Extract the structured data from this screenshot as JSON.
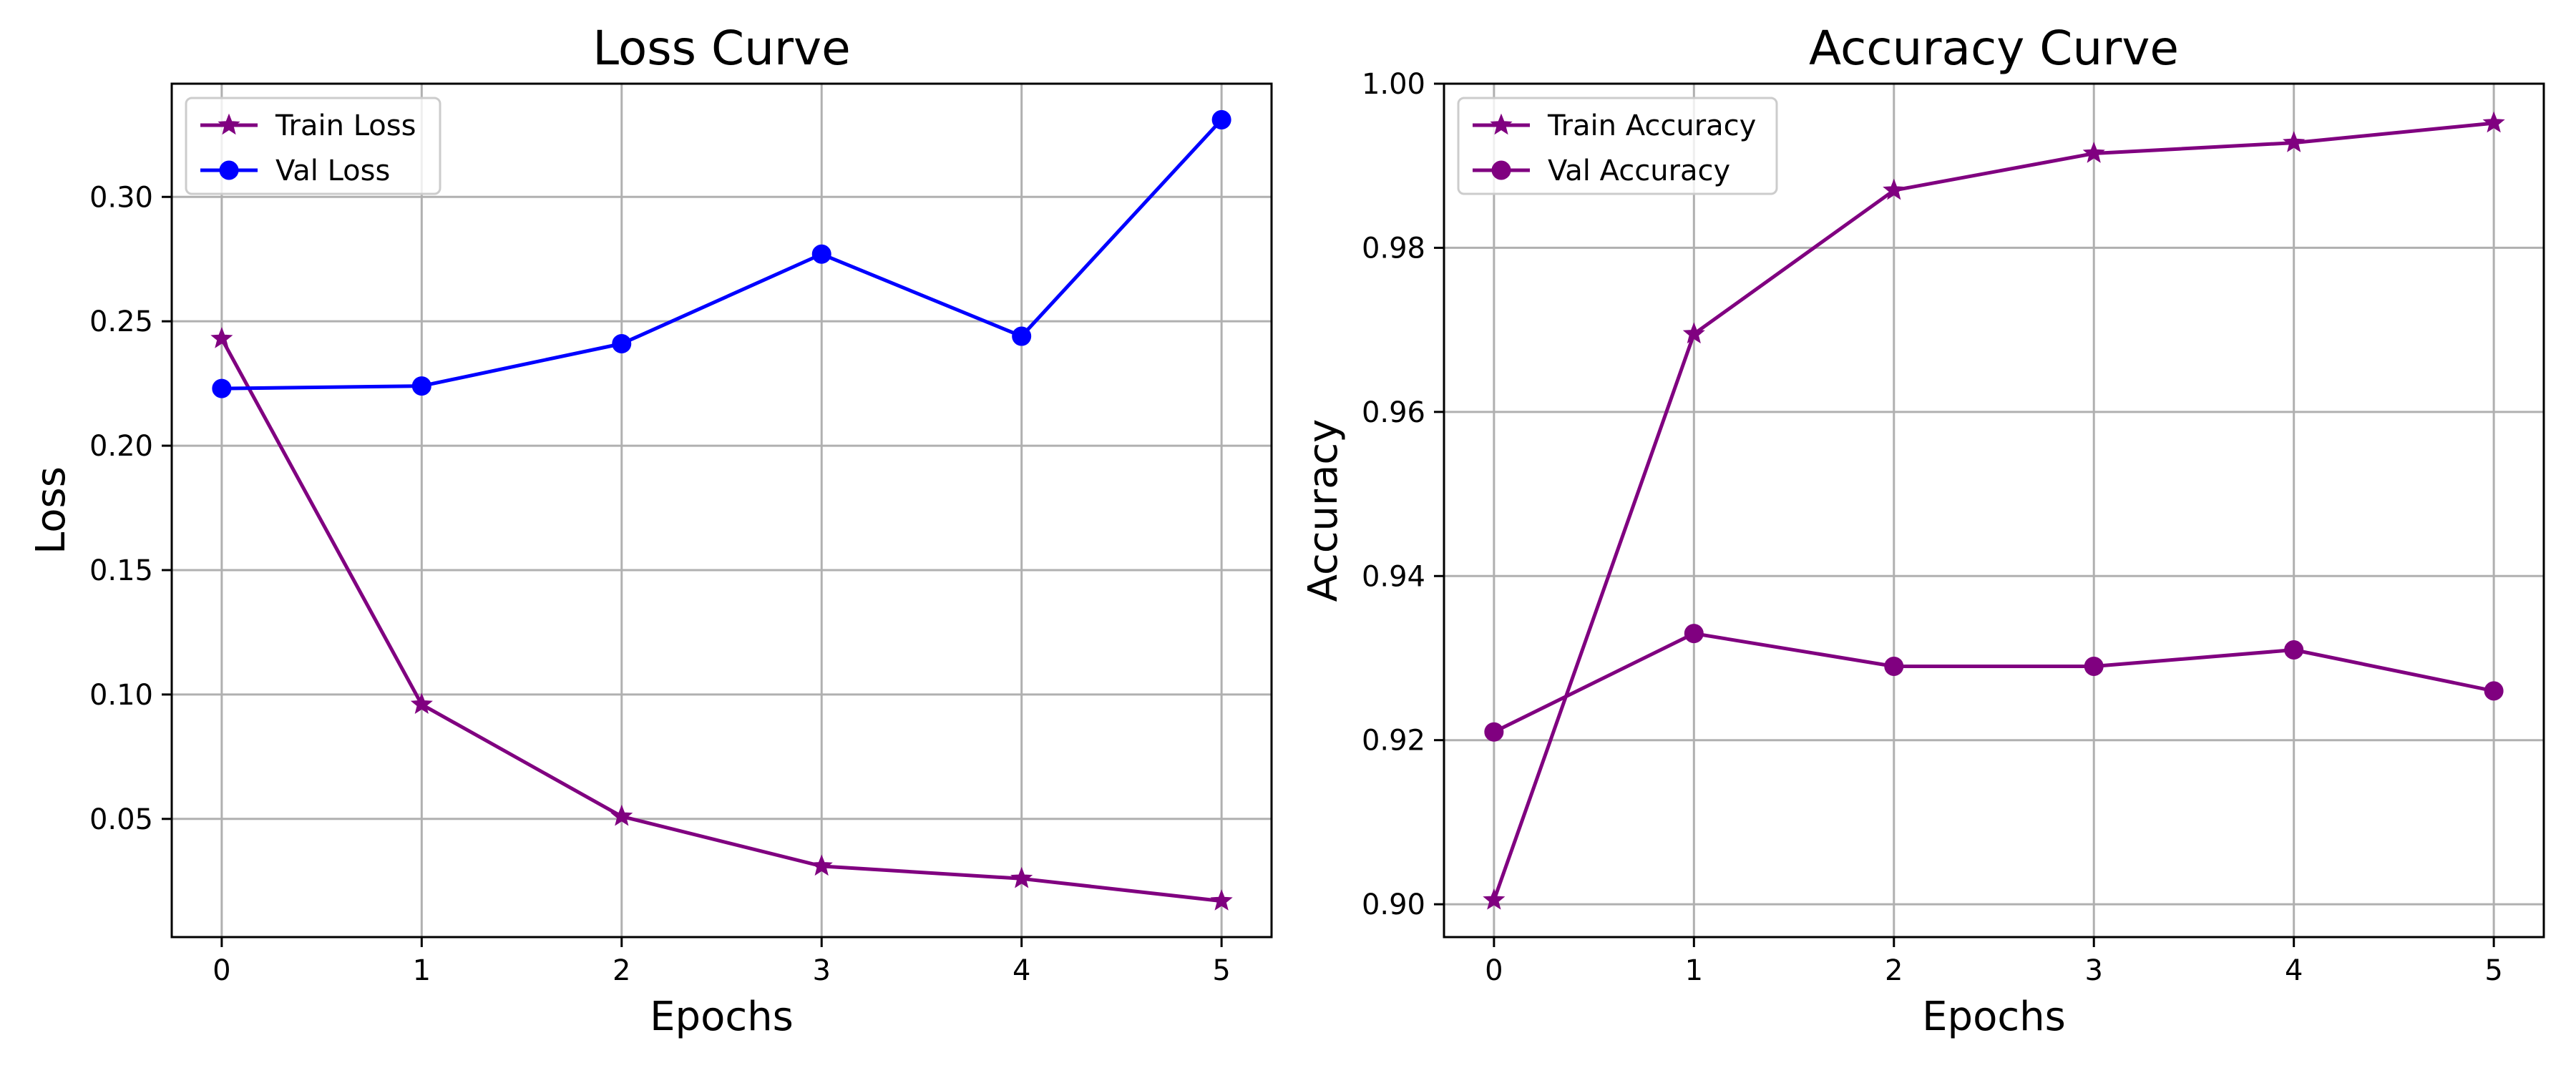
{
  "chart_data": [
    {
      "type": "line",
      "title": "Loss Curve",
      "xlabel": "Epochs",
      "ylabel": "Loss",
      "x": [
        0,
        1,
        2,
        3,
        4,
        5
      ],
      "xlim": [
        -0.25,
        5.25
      ],
      "ylim": [
        0.0025,
        0.3455
      ],
      "xticks": [
        0,
        1,
        2,
        3,
        4,
        5
      ],
      "yticks": [
        0.05,
        0.1,
        0.15,
        0.2,
        0.25,
        0.3
      ],
      "ytick_labels": [
        "0.05",
        "0.10",
        "0.15",
        "0.20",
        "0.25",
        "0.30"
      ],
      "grid": true,
      "legend_position": "upper-left",
      "series": [
        {
          "name": "Train Loss",
          "color": "#800080",
          "marker": "star",
          "values": [
            0.243,
            0.096,
            0.051,
            0.031,
            0.026,
            0.017
          ]
        },
        {
          "name": "Val Loss",
          "color": "#0000ff",
          "marker": "circle",
          "values": [
            0.223,
            0.224,
            0.241,
            0.277,
            0.244,
            0.331
          ]
        }
      ]
    },
    {
      "type": "line",
      "title": "Accuracy Curve",
      "xlabel": "Epochs",
      "ylabel": "Accuracy",
      "x": [
        0,
        1,
        2,
        3,
        4,
        5
      ],
      "xlim": [
        -0.25,
        5.25
      ],
      "ylim": [
        0.896,
        1.0
      ],
      "xticks": [
        0,
        1,
        2,
        3,
        4,
        5
      ],
      "yticks": [
        0.9,
        0.92,
        0.94,
        0.96,
        0.98,
        1.0
      ],
      "ytick_labels": [
        "0.90",
        "0.92",
        "0.94",
        "0.96",
        "0.98",
        "1.00"
      ],
      "grid": true,
      "legend_position": "upper-left",
      "series": [
        {
          "name": "Train Accuracy",
          "color": "#800080",
          "marker": "star",
          "values": [
            0.9005,
            0.9695,
            0.987,
            0.9915,
            0.9928,
            0.9952
          ]
        },
        {
          "name": "Val Accuracy",
          "color": "#800080",
          "marker": "circle",
          "values": [
            0.921,
            0.933,
            0.929,
            0.929,
            0.931,
            0.926
          ]
        }
      ]
    }
  ]
}
